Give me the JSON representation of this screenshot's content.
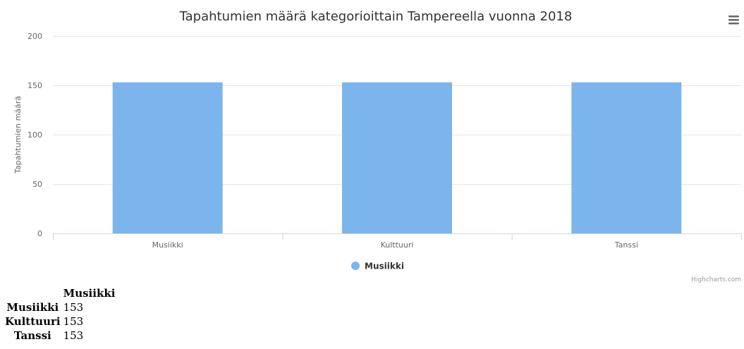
{
  "chart_data": {
    "type": "bar",
    "title": "Tapahtumien määrä kategorioittain Tampereella vuonna 2018",
    "categories": [
      "Musiikki",
      "Kulttuuri",
      "Tanssi"
    ],
    "series": [
      {
        "name": "Musiikki",
        "values": [
          153,
          153,
          153
        ],
        "color": "#7cb5ec"
      }
    ],
    "ylabel": "Tapahtumien määrä",
    "xlabel": "",
    "ylim": [
      0,
      200
    ],
    "yticks": [
      0,
      50,
      100,
      150,
      200
    ],
    "grid": true,
    "legend_placement": "bottom-center"
  },
  "menu": {
    "icon": "hamburger-menu-icon"
  },
  "credits": "Highcharts.com",
  "table": {
    "header": [
      "",
      "Musiikki"
    ],
    "rows": [
      {
        "label": "Musiikki",
        "value": "153"
      },
      {
        "label": "Kulttuuri",
        "value": "153"
      },
      {
        "label": "Tanssi",
        "value": "153"
      }
    ]
  },
  "colors": {
    "bar": "#7cb5ec",
    "grid": "#e6e6e6",
    "axis": "#ccd6eb",
    "menu": "#666666"
  }
}
